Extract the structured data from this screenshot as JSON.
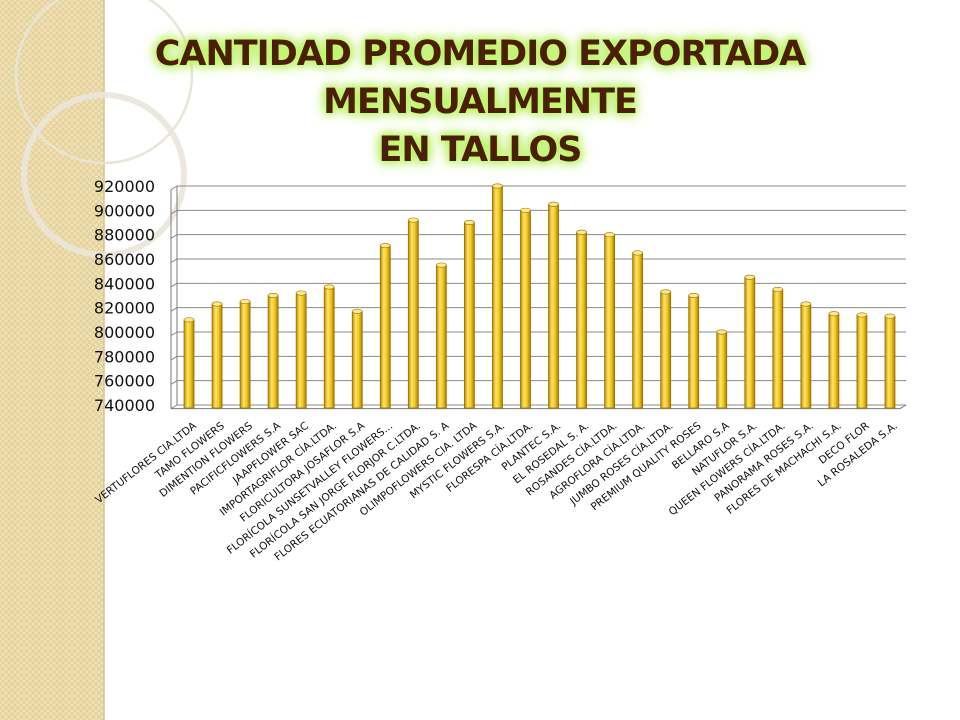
{
  "slide": {
    "title_line1": "CANTIDAD PROMEDIO EXPORTADA MENSUALMENTE",
    "title_line2": "EN TALLOS",
    "accent_colors": {
      "sidebar": "#efe0b5",
      "bar": "#f2c21b",
      "bar_edge": "#a77b00",
      "title_glow": "#b4f24c",
      "title_text": "#4a1f06"
    }
  },
  "chart_data": {
    "type": "bar",
    "title": "",
    "xlabel": "",
    "ylabel": "",
    "ylim": [
      740000,
      920000
    ],
    "yticks": [
      "740000",
      "760000",
      "780000",
      "800000",
      "820000",
      "840000",
      "860000",
      "880000",
      "900000",
      "920000"
    ],
    "grid": true,
    "categories": [
      "VERTUFLORES CIA.LTDA",
      "TAMO FLOWERS",
      "DIMENTION FLOWERS",
      "PACIFICFLOWERS S.A",
      "JAAPFLOWER SAC",
      "IMPORTAGRIFLOR CÍA.LTDA.",
      "FLORICULTORA JOSAFLOR S.A",
      "FLORÍCOLA SUNSETVALLEY FLOWERS...",
      "FLORÍCOLA SAN JORGE FLORJOR C.LTDA.",
      "FLORES ECUATORIANAS DE CALIDAD S. A",
      "OLIMPOFLOWERS CIA. LTDA",
      "MYSTIC FLOWERS S.A.",
      "FLORESPA CÍA.LTDA.",
      "PLANTEC S.A.",
      "EL ROSEDAL S. A.",
      "ROSANDES CÍA.LTDA.",
      "AGROFLORA CÍA.LTDA.",
      "JUMBO ROSES CÍA.LTDA.",
      "PREMIUM QUALITY ROSES",
      "BELLARO S.A",
      "NATUFLOR S.A.",
      "QUEEN FLOWERS CÍA.LTDA.",
      "PANORAMA ROSES S.A.",
      "FLORES DE MACHACHI S.A.",
      "DECO FLOR",
      "LA ROSALEDA S.A."
    ],
    "values": [
      810000,
      823000,
      825000,
      830000,
      832000,
      837000,
      817000,
      871000,
      892000,
      855000,
      890000,
      920000,
      900000,
      905000,
      882000,
      880000,
      865000,
      833000,
      830000,
      800000,
      845000,
      835000,
      823000,
      815000,
      814000,
      813000
    ]
  }
}
